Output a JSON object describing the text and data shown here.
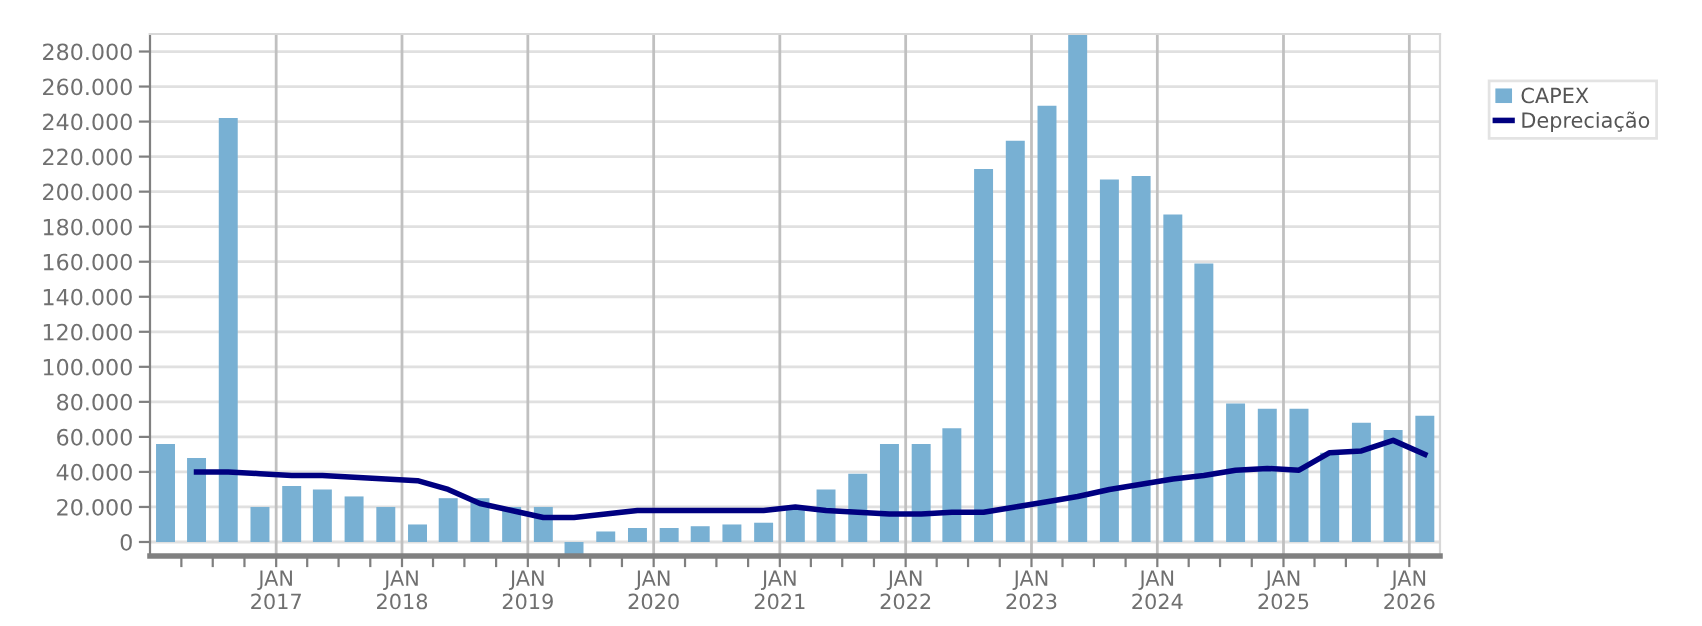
{
  "chart_data": {
    "type": "bar",
    "x": [
      "2016-02-15",
      "2016-05-15",
      "2016-08-15",
      "2016-11-15",
      "2017-02-15",
      "2017-05-15",
      "2017-08-15",
      "2017-11-15",
      "2018-02-15",
      "2018-05-15",
      "2018-08-15",
      "2018-11-15",
      "2019-02-15",
      "2019-05-15",
      "2019-08-15",
      "2019-11-15",
      "2020-02-15",
      "2020-05-15",
      "2020-08-15",
      "2020-11-15",
      "2021-02-15",
      "2021-05-15",
      "2021-08-15",
      "2021-11-15",
      "2022-02-15",
      "2022-05-15",
      "2022-08-15",
      "2022-11-15",
      "2023-02-15",
      "2023-05-15",
      "2023-08-15",
      "2023-11-15",
      "2024-02-15",
      "2024-05-15",
      "2024-08-15",
      "2024-11-15",
      "2025-02-15",
      "2025-05-15",
      "2025-08-15",
      "2025-11-15",
      "2026-02-15"
    ],
    "series": [
      {
        "name": "CAPEX",
        "color": "#78b0d3",
        "values": [
          56000,
          48000,
          242000,
          20000,
          32000,
          30000,
          26000,
          20000,
          10000,
          25000,
          25000,
          20000,
          20000,
          -7000,
          6000,
          8000,
          8000,
          9000,
          10000,
          11000,
          19000,
          30000,
          39000,
          56000,
          56000,
          65000,
          213000,
          229000,
          249000,
          290000,
          207000,
          209000,
          187000,
          159000,
          79000,
          76000,
          76000,
          51000,
          68000,
          64000,
          72000
        ]
      },
      {
        "name": "Depreciação",
        "type": "line",
        "color": "#000080",
        "x": [
          "2016-05-15",
          "2016-08-15",
          "2016-11-15",
          "2017-02-15",
          "2017-05-15",
          "2017-08-15",
          "2017-11-15",
          "2018-02-15",
          "2018-05-15",
          "2018-08-15",
          "2018-11-15",
          "2019-02-15",
          "2019-05-15",
          "2019-08-15",
          "2019-11-15",
          "2020-02-15",
          "2020-05-15",
          "2020-08-15",
          "2020-11-15",
          "2021-02-15",
          "2021-05-15",
          "2021-08-15",
          "2021-11-15",
          "2022-02-15",
          "2022-05-15",
          "2022-08-15",
          "2022-11-15",
          "2023-02-15",
          "2023-05-15",
          "2023-08-15",
          "2023-11-15",
          "2024-02-15",
          "2024-05-15",
          "2024-08-15",
          "2024-11-15",
          "2025-02-15",
          "2025-05-15",
          "2025-08-15",
          "2025-11-15",
          "2026-02-15"
        ],
        "values": [
          40000,
          40000,
          39000,
          38000,
          38000,
          37000,
          36000,
          35000,
          30000,
          22000,
          18000,
          14000,
          14000,
          16000,
          18000,
          18000,
          18000,
          18000,
          18000,
          20000,
          18000,
          17000,
          16000,
          16000,
          17000,
          17000,
          20000,
          23000,
          26000,
          30000,
          33000,
          36000,
          38000,
          41000,
          42000,
          41000,
          51000,
          52000,
          58000,
          50000
        ]
      }
    ],
    "xlim": [
      "2016-01-01",
      "2026-03-31"
    ],
    "xticks": [
      {
        "value": "2016-04-01",
        "label": null
      },
      {
        "value": "2016-07-01",
        "label": null
      },
      {
        "value": "2016-10-01",
        "label": null
      },
      {
        "value": "2017-01-01",
        "label": "JAN\n2017"
      },
      {
        "value": "2017-04-01",
        "label": null
      },
      {
        "value": "2017-07-01",
        "label": null
      },
      {
        "value": "2017-10-01",
        "label": null
      },
      {
        "value": "2018-01-01",
        "label": "JAN\n2018"
      },
      {
        "value": "2018-04-01",
        "label": null
      },
      {
        "value": "2018-07-01",
        "label": null
      },
      {
        "value": "2018-10-01",
        "label": null
      },
      {
        "value": "2019-01-01",
        "label": "JAN\n2019"
      },
      {
        "value": "2019-04-01",
        "label": null
      },
      {
        "value": "2019-07-01",
        "label": null
      },
      {
        "value": "2019-10-01",
        "label": null
      },
      {
        "value": "2020-01-01",
        "label": "JAN\n2020"
      },
      {
        "value": "2020-04-01",
        "label": null
      },
      {
        "value": "2020-07-01",
        "label": null
      },
      {
        "value": "2020-10-01",
        "label": null
      },
      {
        "value": "2021-01-01",
        "label": "JAN\n2021"
      },
      {
        "value": "2021-04-01",
        "label": null
      },
      {
        "value": "2021-07-01",
        "label": null
      },
      {
        "value": "2021-10-01",
        "label": null
      },
      {
        "value": "2022-01-01",
        "label": "JAN\n2022"
      },
      {
        "value": "2022-04-01",
        "label": null
      },
      {
        "value": "2022-07-01",
        "label": null
      },
      {
        "value": "2022-10-01",
        "label": null
      },
      {
        "value": "2023-01-01",
        "label": "JAN\n2023"
      },
      {
        "value": "2023-04-01",
        "label": null
      },
      {
        "value": "2023-07-01",
        "label": null
      },
      {
        "value": "2023-10-01",
        "label": null
      },
      {
        "value": "2024-01-01",
        "label": "JAN\n2024"
      },
      {
        "value": "2024-04-01",
        "label": null
      },
      {
        "value": "2024-07-01",
        "label": null
      },
      {
        "value": "2024-10-01",
        "label": null
      },
      {
        "value": "2025-01-01",
        "label": "JAN\n2025"
      },
      {
        "value": "2025-04-01",
        "label": null
      },
      {
        "value": "2025-07-01",
        "label": null
      },
      {
        "value": "2025-10-01",
        "label": null
      },
      {
        "value": "2026-01-01",
        "label": "JAN\n2026"
      }
    ],
    "ylim": [
      -8000,
      290000
    ],
    "yticks": [
      {
        "value": 0,
        "label": "0"
      },
      {
        "value": 20000,
        "label": "20.000"
      },
      {
        "value": 40000,
        "label": "40.000"
      },
      {
        "value": 60000,
        "label": "60.000"
      },
      {
        "value": 80000,
        "label": "80.000"
      },
      {
        "value": 100000,
        "label": "100.000"
      },
      {
        "value": 120000,
        "label": "120.000"
      },
      {
        "value": 140000,
        "label": "140.000"
      },
      {
        "value": 160000,
        "label": "160.000"
      },
      {
        "value": 180000,
        "label": "180.000"
      },
      {
        "value": 200000,
        "label": "200.000"
      },
      {
        "value": 220000,
        "label": "220.000"
      },
      {
        "value": 240000,
        "label": "240.000"
      },
      {
        "value": 260000,
        "label": "260.000"
      },
      {
        "value": 280000,
        "label": "280.000"
      }
    ],
    "grid": true,
    "legend": "top right",
    "marker": "none",
    "line_style": "solid"
  }
}
